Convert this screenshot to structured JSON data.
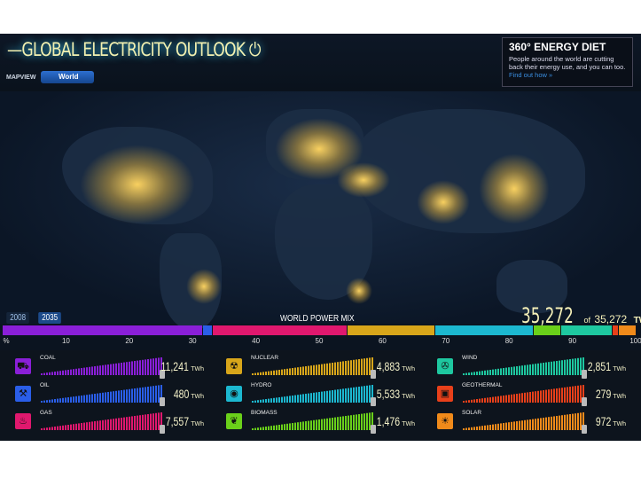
{
  "header": {
    "title": "—GLOBAL ELECTRICITY OUTLOOK",
    "plug_icon": "plug-icon",
    "mapview_label": "MAPVIEW",
    "mapview_value": "World"
  },
  "diet": {
    "title": "360° ENERGY DIET",
    "text": "People around the world are cutting back their energy use, and you can too.",
    "link": "Find out how »"
  },
  "timeline": {
    "years": [
      "2008",
      "2035"
    ],
    "active": "2035"
  },
  "mix": {
    "title": "WORLD POWER MIX",
    "total": "35,272",
    "of": "of",
    "max": "35,272",
    "unit": "TWh",
    "axis": [
      "%",
      "10",
      "20",
      "30",
      "40",
      "50",
      "60",
      "70",
      "80",
      "90",
      "100"
    ]
  },
  "sources": [
    {
      "name": "COAL",
      "value": "11,241",
      "twh": 11241,
      "unit": "TWh",
      "color": "#8a1fd8",
      "icon": "coal-cart-icon"
    },
    {
      "name": "OIL",
      "value": "480",
      "twh": 480,
      "unit": "TWh",
      "color": "#2a5ee8",
      "icon": "oil-pump-icon"
    },
    {
      "name": "GAS",
      "value": "7,557",
      "twh": 7557,
      "unit": "TWh",
      "color": "#e0186e",
      "icon": "flame-icon"
    },
    {
      "name": "NUCLEAR",
      "value": "4,883",
      "twh": 4883,
      "unit": "TWh",
      "color": "#d8a61a",
      "icon": "nuclear-plant-icon"
    },
    {
      "name": "HYDRO",
      "value": "5,533",
      "twh": 5533,
      "unit": "TWh",
      "color": "#1cb8d0",
      "icon": "water-drop-icon"
    },
    {
      "name": "BIOMASS",
      "value": "1,476",
      "twh": 1476,
      "unit": "TWh",
      "color": "#6ad01a",
      "icon": "leaf-icon"
    },
    {
      "name": "WIND",
      "value": "2,851",
      "twh": 2851,
      "unit": "TWh",
      "color": "#1ec8a0",
      "icon": "wind-turbine-icon"
    },
    {
      "name": "GEOTHERMAL",
      "value": "279",
      "twh": 279,
      "unit": "TWh",
      "color": "#e8401a",
      "icon": "geothermal-icon"
    },
    {
      "name": "SOLAR",
      "value": "972",
      "twh": 972,
      "unit": "TWh",
      "color": "#f08a1a",
      "icon": "solar-panel-icon"
    }
  ]
}
